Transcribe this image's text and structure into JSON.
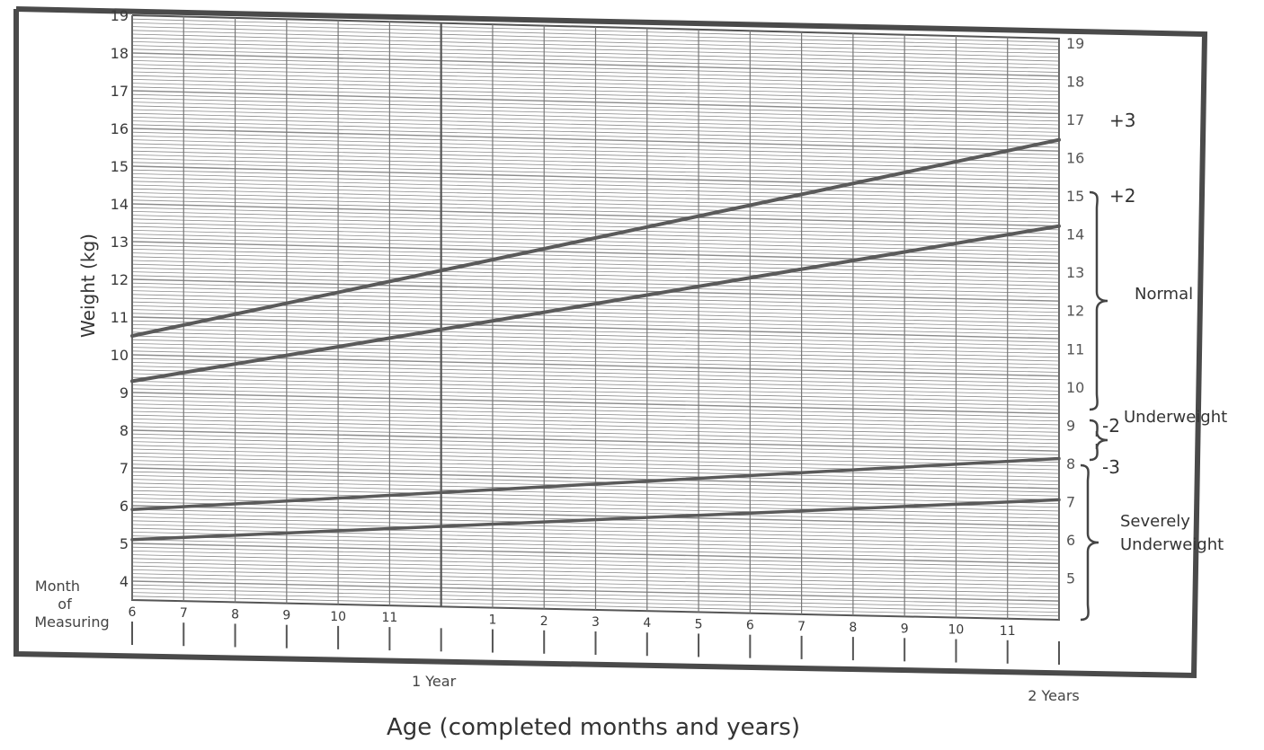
{
  "chart_data": {
    "type": "line",
    "title": "",
    "ylabel": "Weight (kg)",
    "xlabel": "Age (completed months and years)",
    "ylim_left": [
      3.5,
      19
    ],
    "ylim_right": [
      4,
      19
    ],
    "left_ticks": [
      "19",
      "18",
      "17",
      "16",
      "15",
      "14",
      "13",
      "12",
      "11",
      "10",
      "9",
      "8",
      "7",
      "6",
      "5",
      "4"
    ],
    "right_ticks": [
      "19",
      "18",
      "17",
      "16",
      "15",
      "14",
      "13",
      "12",
      "11",
      "10",
      "9",
      "8",
      "7",
      "6",
      "5"
    ],
    "x_month_labels": [
      "6",
      "7",
      "8",
      "9",
      "10",
      "11",
      "",
      "1",
      "2",
      "3",
      "4",
      "5",
      "6",
      "7",
      "8",
      "9",
      "10",
      "11",
      ""
    ],
    "x_year_labels": [
      "1 Year",
      "2 Years"
    ],
    "month_row_label": [
      "Month",
      "of",
      "Measuring"
    ],
    "grid": true,
    "series": [
      {
        "name": "+3",
        "x": [
          6,
          24
        ],
        "y": [
          10.5,
          16.3
        ]
      },
      {
        "name": "+2",
        "x": [
          6,
          24
        ],
        "y": [
          9.3,
          14.0
        ]
      },
      {
        "name": "-2",
        "x": [
          6,
          24
        ],
        "y": [
          5.9,
          7.8
        ]
      },
      {
        "name": "-3",
        "x": [
          6,
          24
        ],
        "y": [
          5.1,
          6.7
        ]
      }
    ],
    "zones": [
      "Normal",
      "Underweight",
      "Severely\nUnderweight"
    ],
    "zone_lines": [
      "Normal",
      "Underweight",
      "Severely",
      "Underweight"
    ]
  },
  "colors": {
    "grid": "#8a8a8a",
    "curve": "#5a5a5a",
    "frame": "#555555"
  }
}
